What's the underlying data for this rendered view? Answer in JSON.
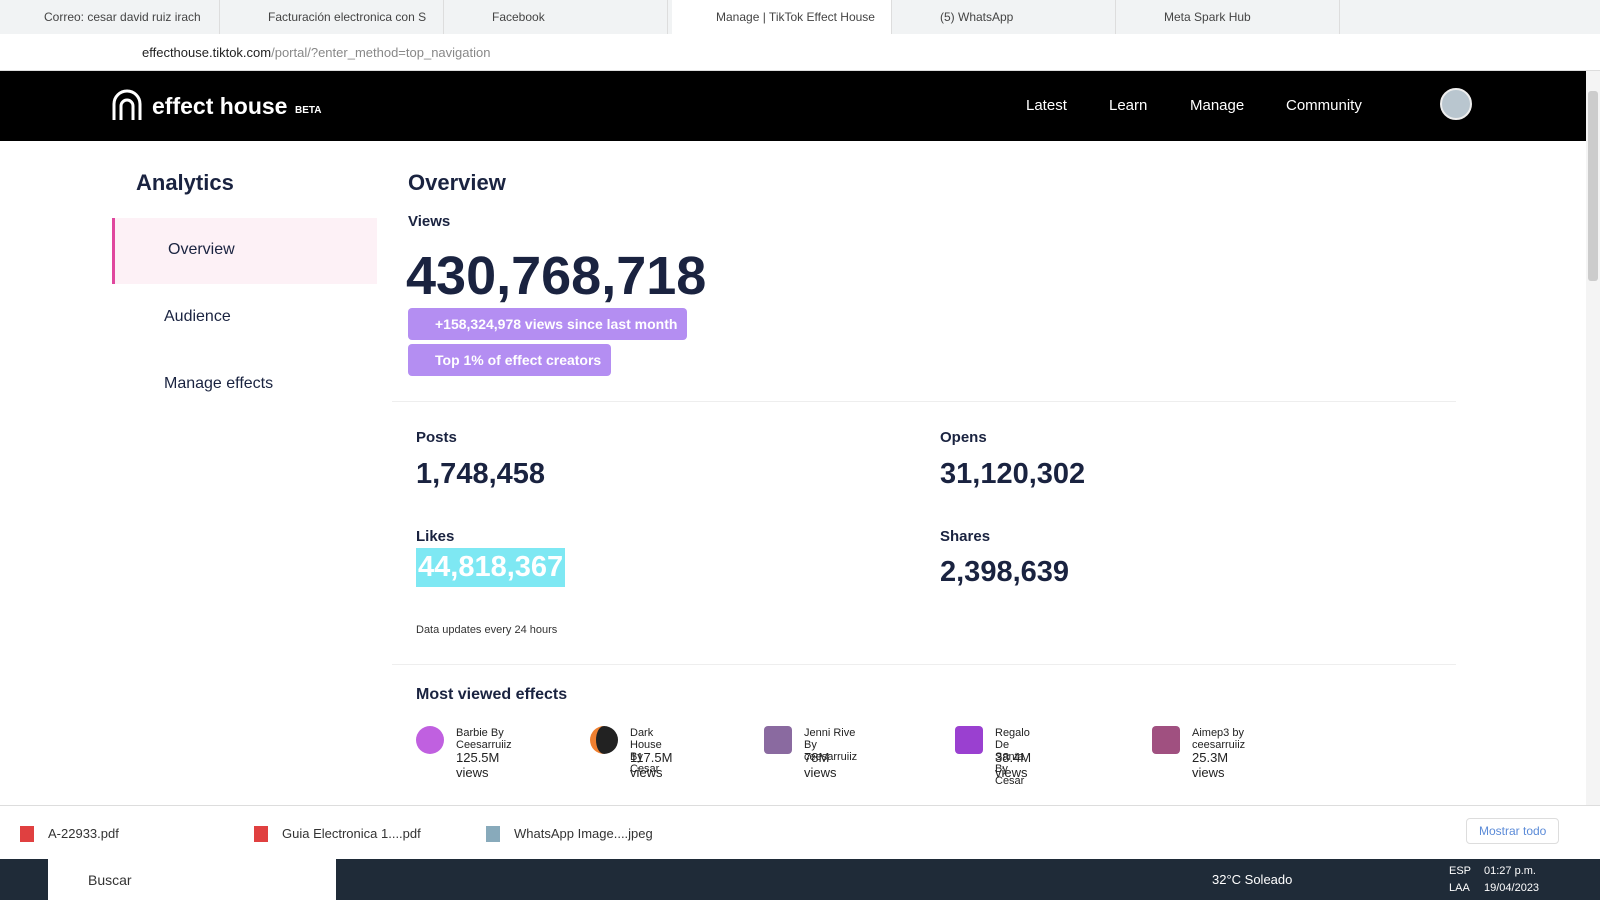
{
  "browser": {
    "tabs": [
      "Correo: cesar david ruiz irach",
      "Facturación electronica con S",
      "Facebook",
      "Manage | TikTok Effect House",
      "(5) WhatsApp",
      "Meta Spark Hub"
    ],
    "url_host": "effecthouse.tiktok.com",
    "url_path": "/portal/?enter_method=top_navigation"
  },
  "nav": {
    "logo": "effect house",
    "beta": "BETA",
    "links": [
      "Latest",
      "Learn",
      "Manage",
      "Community"
    ]
  },
  "sidebar": {
    "title": "Analytics",
    "items": [
      "Overview",
      "Audience",
      "Manage effects"
    ]
  },
  "overview": {
    "title": "Overview",
    "views_label": "Views",
    "views": "430,768,718",
    "growth": "+158,324,978 views since last month",
    "badge": "Top 1% of effect creators",
    "stats": [
      {
        "label": "Posts",
        "value": "1,748,458"
      },
      {
        "label": "Opens",
        "value": "31,120,302"
      },
      {
        "label": "Likes",
        "value": "44,818,367"
      },
      {
        "label": "Shares",
        "value": "2,398,639"
      }
    ],
    "note": "Data updates every 24 hours"
  },
  "most_viewed": {
    "title": "Most viewed effects",
    "effects": [
      {
        "name": "Barbie By Ceesarruiiz",
        "views": "125.5M views"
      },
      {
        "name": "Dark House By Cesar",
        "views": "117.5M views"
      },
      {
        "name": "Jenni Rive By ceesarruiiz",
        "views": "78M views"
      },
      {
        "name": "Regalo De Santa By Cesar",
        "views": "38.4M views"
      },
      {
        "name": "Aimep3 by ceesarruiiz",
        "views": "25.3M views"
      }
    ]
  },
  "downloads": {
    "files": [
      "A-22933.pdf",
      "Guia Electronica 1....pdf",
      "WhatsApp Image....jpeg"
    ],
    "show_all": "Mostrar todo"
  },
  "taskbar": {
    "search": "Buscar",
    "weather": "32°C Soleado",
    "lang": "ESP",
    "region": "LAA",
    "time": "01:27 p.m.",
    "date": "19/04/2023"
  }
}
